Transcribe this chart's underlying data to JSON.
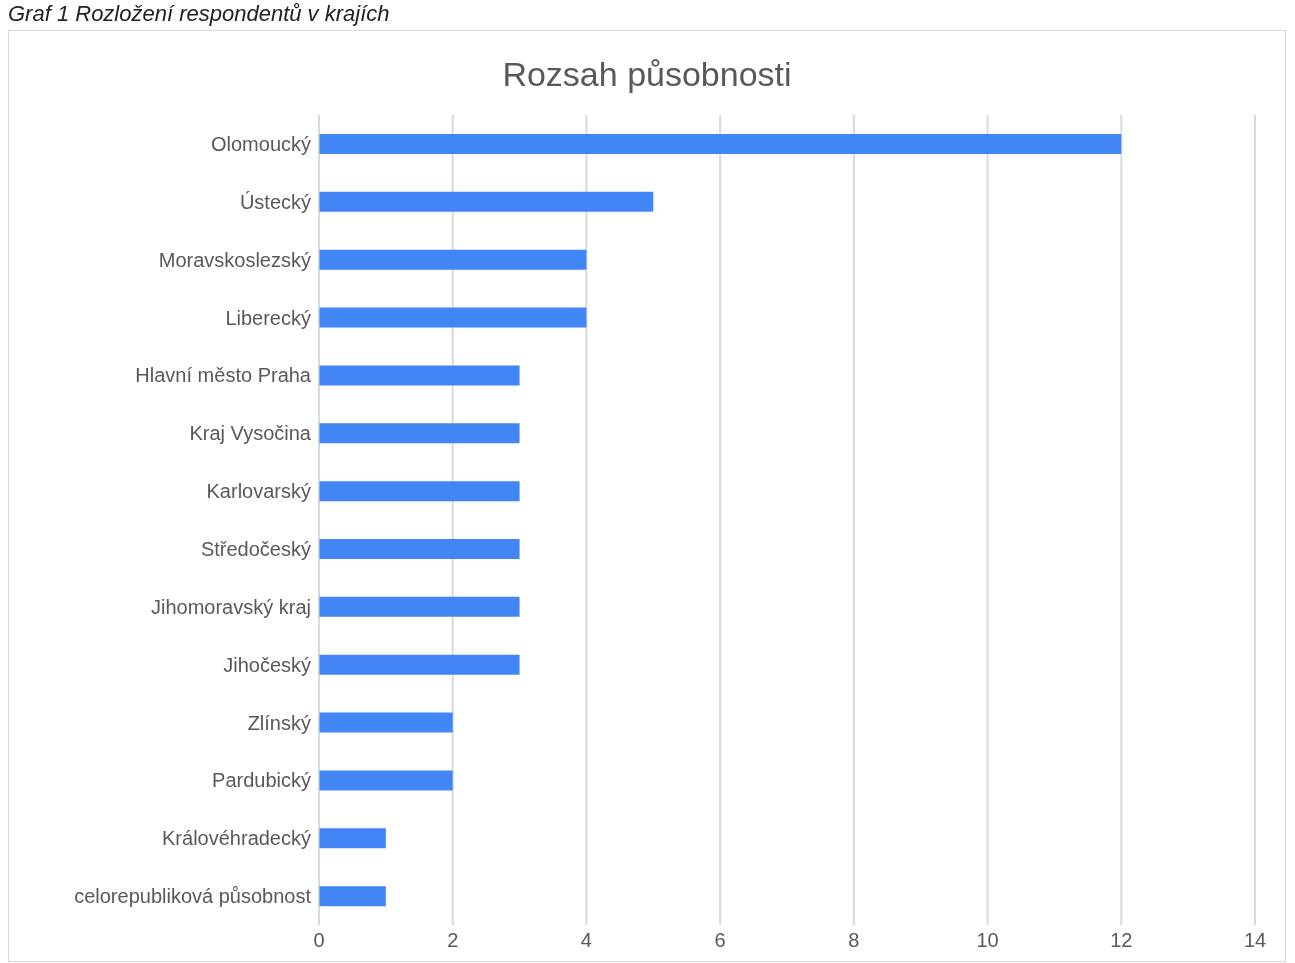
{
  "chart_data": {
    "type": "bar",
    "orientation": "horizontal",
    "title": "Rozsah působnosti",
    "annotations": [
      "Graf 1 Rozložení respondentů v krajích"
    ],
    "categories": [
      "Olomoucký",
      "Ústecký",
      "Moravskoslezský",
      "Liberecký",
      "Hlavní město Praha",
      "Kraj Vysočina",
      "Karlovarský",
      "Středočeský",
      "Jihomoravský kraj",
      "Jihočeský",
      "Zlínský",
      "Pardubický",
      "Královéhradecký",
      "celorepubliková působnost"
    ],
    "values": [
      12,
      5,
      4,
      4,
      3,
      3,
      3,
      3,
      3,
      3,
      2,
      2,
      1,
      1
    ],
    "color": "#4285f4",
    "xlim": [
      0,
      14
    ],
    "xticks": [
      0,
      2,
      4,
      6,
      8,
      10,
      12,
      14
    ],
    "grid": "x"
  }
}
